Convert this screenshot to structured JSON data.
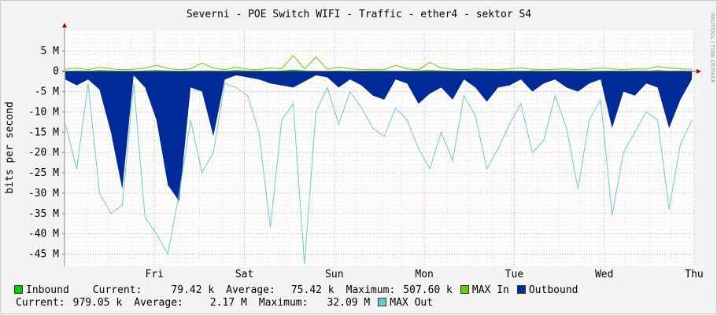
{
  "chart_data": {
    "type": "area",
    "title": "Severni - POE Switch WIFI - Traffic - ether4 - sektor S4",
    "ylabel": "bits per second",
    "watermark": "RRDTOOL / TOBI OETIKER",
    "y_ticks": [
      "5 M",
      "0",
      "-5 M",
      "-10 M",
      "-15 M",
      "-20 M",
      "-25 M",
      "-30 M",
      "-35 M",
      "-40 M",
      "-45 M"
    ],
    "y_tick_values": [
      5,
      0,
      -5,
      -10,
      -15,
      -20,
      -25,
      -30,
      -35,
      -40,
      -45
    ],
    "ylim": [
      -48,
      10
    ],
    "x_labels": [
      "Fri",
      "Sat",
      "Sun",
      "Mon",
      "Tue",
      "Wed",
      "Thu"
    ],
    "x_label_days": [
      1,
      2,
      3,
      4,
      5,
      6,
      7
    ],
    "xlim_days": [
      0,
      7
    ],
    "grid": true,
    "units": "Mbit/s",
    "series": [
      {
        "name": "Inbound",
        "color": "#00cc00",
        "values_mbps": [
          0.1,
          0.2,
          0.1,
          0.3,
          0.2,
          0.1,
          0.1,
          0.2,
          0.3,
          0.2,
          0.1,
          0.1,
          0.2,
          0.2,
          0.1,
          0.3,
          0.2,
          0.1,
          0.1,
          0.2,
          0.4,
          0.2,
          0.1,
          0.1,
          0.2,
          0.1,
          0.1,
          0.2,
          0.1,
          0.1,
          0.1,
          0.2,
          0.3,
          0.2,
          0.1,
          0.1,
          0.2,
          0.1,
          0.1,
          0.2,
          0.1,
          0.2,
          0.1,
          0.1,
          0.2,
          0.1,
          0.1,
          0.1,
          0.2,
          0.1,
          0.2,
          0.1,
          0.3,
          0.1,
          0.2,
          0.1
        ]
      },
      {
        "name": "MAX In",
        "color": "#66cc00",
        "values_mbps": [
          0.5,
          0.8,
          0.4,
          1.0,
          0.6,
          0.4,
          0.5,
          0.8,
          1.5,
          0.7,
          0.4,
          0.6,
          2.0,
          0.8,
          0.4,
          1.0,
          0.5,
          0.4,
          0.8,
          0.6,
          3.9,
          0.6,
          3.5,
          0.5,
          1.0,
          0.6,
          0.4,
          0.5,
          0.4,
          1.5,
          0.6,
          0.4,
          2.2,
          0.8,
          0.5,
          0.4,
          0.6,
          0.5,
          0.4,
          0.6,
          0.8,
          0.5,
          0.4,
          0.5,
          0.6,
          0.4,
          0.5,
          0.8,
          0.6,
          0.4,
          0.6,
          0.5,
          1.2,
          0.8,
          0.6,
          0.5
        ]
      },
      {
        "name": "Outbound",
        "color": "#002a97",
        "values_mbps": [
          -2.0,
          -3.5,
          -2.0,
          -4.5,
          -15.0,
          -29.0,
          -1.0,
          -4.0,
          -12.0,
          -28.0,
          -32.0,
          -4.0,
          -5.0,
          -16.0,
          -2.0,
          -1.0,
          -1.5,
          -2.0,
          -3.0,
          -3.5,
          -4.0,
          -2.5,
          -1.0,
          -1.5,
          -4.0,
          -2.0,
          -3.5,
          -6.0,
          -7.0,
          -2.0,
          -3.0,
          -8.0,
          -5.5,
          -4.0,
          -7.0,
          -2.0,
          -4.0,
          -7.5,
          -4.0,
          -3.5,
          -2.0,
          -5.0,
          -3.0,
          -2.0,
          -4.0,
          -5.0,
          -3.0,
          -2.0,
          -14.0,
          -5.0,
          -6.0,
          -3.0,
          -4.0,
          -14.0,
          -7.0,
          -2.0
        ]
      },
      {
        "name": "MAX Out",
        "color": "#66cccc",
        "values_mbps": [
          -13.0,
          -24.0,
          -3.0,
          -30.0,
          -35.0,
          -33.0,
          -3.0,
          -36.0,
          -40.0,
          -45.0,
          -30.0,
          -12.0,
          -25.0,
          -20.0,
          -3.0,
          -4.0,
          -6.0,
          -15.0,
          -38.5,
          -12.0,
          -8.0,
          -47.5,
          -10.0,
          -4.0,
          -13.0,
          -5.0,
          -9.0,
          -14.0,
          -16.0,
          -9.0,
          -12.0,
          -19.0,
          -24.0,
          -15.0,
          -22.0,
          -6.0,
          -11.0,
          -24.0,
          -19.0,
          -13.0,
          -8.0,
          -20.0,
          -17.0,
          -6.0,
          -14.0,
          -29.0,
          -12.0,
          -7.0,
          -35.5,
          -20.0,
          -15.0,
          -10.0,
          -12.0,
          -34.0,
          -18.0,
          -12.0
        ]
      }
    ]
  },
  "legend": {
    "row1": {
      "inbound": "Inbound",
      "current_label": "Current:",
      "current_value": "79.42 k",
      "average_label": "Average:",
      "average_value": "75.42 k",
      "maximum_label": "Maximum:",
      "maximum_value": "507.60 k",
      "max_in": "MAX In",
      "outbound": "Outbound"
    },
    "row2": {
      "current_label": "Current:",
      "current_value": "979.05 k",
      "average_label": "Average:",
      "average_value": "2.17 M",
      "maximum_label": "Maximum:",
      "maximum_value": "32.09 M",
      "max_out": "MAX Out"
    },
    "colors": {
      "inbound": "#00cc00",
      "max_in": "#66cc00",
      "outbound": "#002a97",
      "max_out": "#66cccc"
    }
  }
}
